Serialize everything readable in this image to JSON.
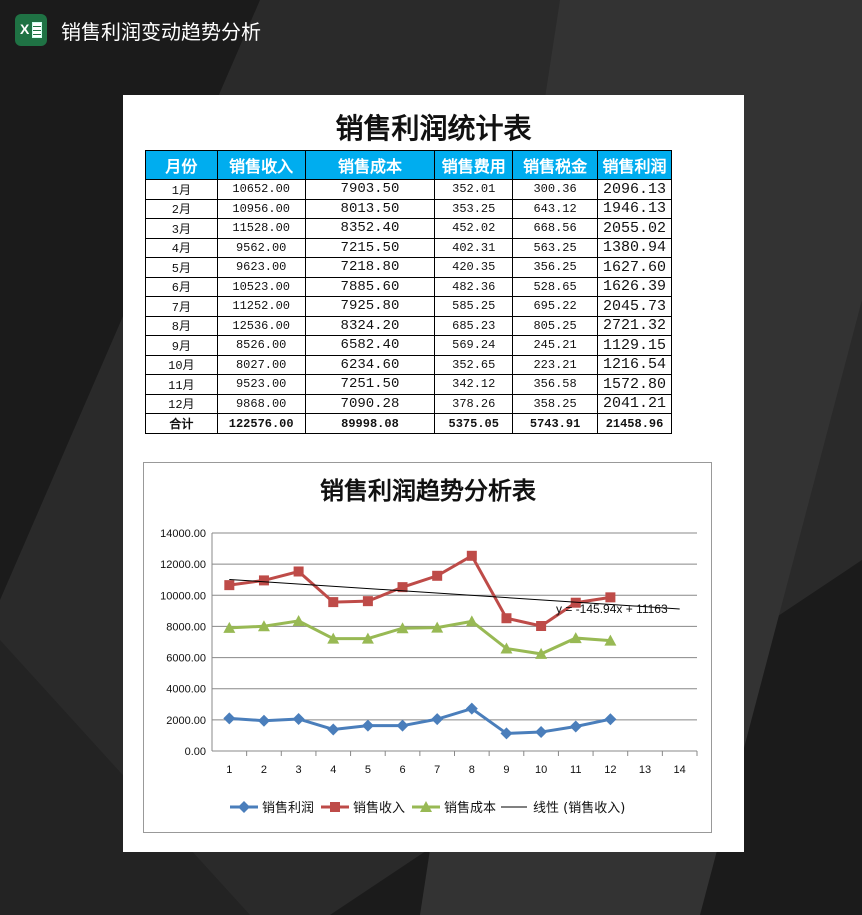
{
  "app": {
    "title": "销售利润变动趋势分析",
    "icon": "excel-icon"
  },
  "table": {
    "title": "销售利润统计表",
    "headers": [
      "月份",
      "销售收入",
      "销售成本",
      "销售费用",
      "销售税金",
      "销售利润"
    ],
    "rows": [
      [
        "1月",
        "10652.00",
        "7903.50",
        "352.01",
        "300.36",
        "2096.13"
      ],
      [
        "2月",
        "10956.00",
        "8013.50",
        "353.25",
        "643.12",
        "1946.13"
      ],
      [
        "3月",
        "11528.00",
        "8352.40",
        "452.02",
        "668.56",
        "2055.02"
      ],
      [
        "4月",
        "9562.00",
        "7215.50",
        "402.31",
        "563.25",
        "1380.94"
      ],
      [
        "5月",
        "9623.00",
        "7218.80",
        "420.35",
        "356.25",
        "1627.60"
      ],
      [
        "6月",
        "10523.00",
        "7885.60",
        "482.36",
        "528.65",
        "1626.39"
      ],
      [
        "7月",
        "11252.00",
        "7925.80",
        "585.25",
        "695.22",
        "2045.73"
      ],
      [
        "8月",
        "12536.00",
        "8324.20",
        "685.23",
        "805.25",
        "2721.32"
      ],
      [
        "9月",
        "8526.00",
        "6582.40",
        "569.24",
        "245.21",
        "1129.15"
      ],
      [
        "10月",
        "8027.00",
        "6234.60",
        "352.65",
        "223.21",
        "1216.54"
      ],
      [
        "11月",
        "9523.00",
        "7251.50",
        "342.12",
        "356.58",
        "1572.80"
      ],
      [
        "12月",
        "9868.00",
        "7090.28",
        "378.26",
        "358.25",
        "2041.21"
      ]
    ],
    "total": [
      "合计",
      "122576.00",
      "89998.08",
      "5375.05",
      "5743.91",
      "21458.96"
    ],
    "header_color": "#00adef"
  },
  "chart_data": {
    "type": "line",
    "title": "销售利润趋势分析表",
    "x": [
      1,
      2,
      3,
      4,
      5,
      6,
      7,
      8,
      9,
      10,
      11,
      12
    ],
    "xticks": [
      "1",
      "2",
      "3",
      "4",
      "5",
      "6",
      "7",
      "8",
      "9",
      "10",
      "11",
      "12",
      "13",
      "14"
    ],
    "yticks": [
      "0.00",
      "2000.00",
      "4000.00",
      "6000.00",
      "8000.00",
      "10000.00",
      "12000.00",
      "14000.00"
    ],
    "ylim": [
      0,
      14000
    ],
    "grid": true,
    "legend": "bottom",
    "series": [
      {
        "name": "销售利润",
        "color": "#4a7ebb",
        "marker": "diamond",
        "values": [
          2096.13,
          1946.13,
          2055.02,
          1380.94,
          1627.6,
          1626.39,
          2045.73,
          2721.32,
          1129.15,
          1216.54,
          1572.8,
          2041.21
        ]
      },
      {
        "name": "销售收入",
        "color": "#be4b48",
        "marker": "square",
        "values": [
          10652,
          10956,
          11528,
          9562,
          9623,
          10523,
          11252,
          12536,
          8526,
          8027,
          9523,
          9868
        ]
      },
      {
        "name": "销售成本",
        "color": "#98b954",
        "marker": "triangle",
        "values": [
          7903.5,
          8013.5,
          8352.4,
          7215.5,
          7218.8,
          7885.6,
          7925.8,
          8324.2,
          6582.4,
          6234.6,
          7251.5,
          7090.28
        ]
      }
    ],
    "trendline": {
      "name": "线性 (销售收入)",
      "slope": -145.94,
      "intercept": 11163,
      "x_range": [
        1,
        14
      ],
      "equation": "y = -145.94x + 11163",
      "color": "#000000"
    }
  }
}
